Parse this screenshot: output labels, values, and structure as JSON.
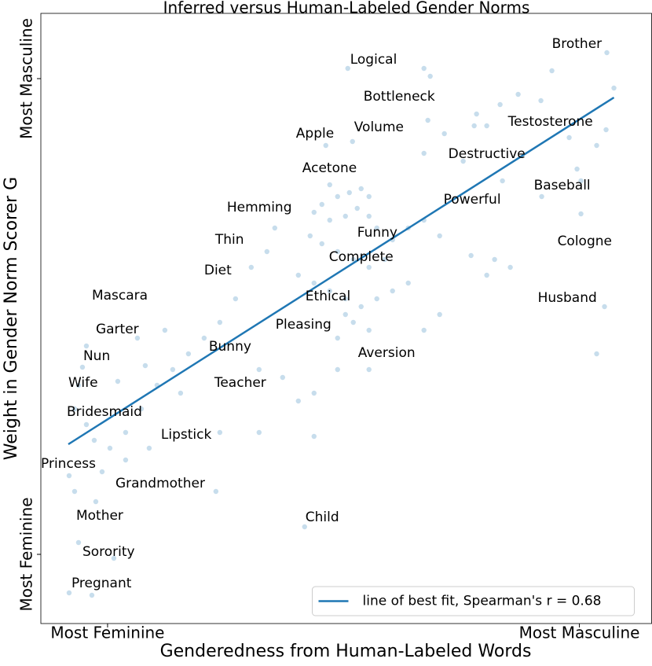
{
  "chart_data": {
    "type": "scatter",
    "title": "Inferred versus Human-Labeled Gender Norms",
    "x_label": "Genderedness from Human-Labeled Words",
    "y_label": "Weight in Gender Norm Scorer G",
    "xlim": [
      0,
      778
    ],
    "ylim": [
      0,
      776
    ],
    "xticks": [
      {
        "value": 85,
        "label": "Most Feminine"
      },
      {
        "value": 686,
        "label": "Most Masculine"
      }
    ],
    "yticks": [
      {
        "value": 88,
        "label": "Most Feminine"
      },
      {
        "value": 693,
        "label": "Most Masculine"
      }
    ],
    "legend": "lower right",
    "points": {
      "color": "#1f77b4",
      "x": [
        721,
        391,
        488,
        651,
        496,
        730,
        608,
        637,
        585,
        555,
        493,
        514,
        552,
        568,
        363,
        397,
        488,
        538,
        673,
        720,
        708,
        588,
        683,
        688,
        638,
        688,
        368,
        378,
        393,
        408,
        418,
        358,
        348,
        368,
        388,
        403,
        418,
        428,
        343,
        358,
        378,
        398,
        418,
        438,
        448,
        468,
        488,
        508,
        298,
        288,
        268,
        328,
        348,
        368,
        388,
        408,
        428,
        448,
        468,
        388,
        398,
        378,
        418,
        248,
        228,
        208,
        188,
        168,
        148,
        178,
        278,
        308,
        328,
        348,
        378,
        418,
        278,
        348,
        228,
        128,
        108,
        88,
        78,
        108,
        138,
        68,
        58,
        43,
        48,
        98,
        58,
        53,
        123,
        133,
        158,
        36,
        43,
        70,
        223,
        336,
        48,
        93,
        36,
        65,
        718,
        708,
        578,
        548,
        508,
        488,
        568,
        598
      ],
      "y": [
        726,
        706,
        706,
        703,
        696,
        681,
        673,
        665,
        660,
        648,
        640,
        623,
        633,
        633,
        608,
        613,
        598,
        588,
        618,
        628,
        608,
        563,
        578,
        563,
        543,
        521,
        558,
        543,
        548,
        553,
        543,
        533,
        523,
        513,
        518,
        528,
        518,
        503,
        493,
        483,
        473,
        463,
        453,
        463,
        488,
        503,
        513,
        493,
        503,
        473,
        453,
        443,
        433,
        423,
        413,
        403,
        413,
        423,
        433,
        393,
        383,
        363,
        373,
        413,
        383,
        363,
        343,
        323,
        303,
        293,
        323,
        313,
        283,
        293,
        323,
        323,
        243,
        238,
        243,
        273,
        243,
        223,
        193,
        208,
        223,
        233,
        253,
        273,
        303,
        308,
        353,
        326,
        363,
        328,
        373,
        188,
        168,
        155,
        168,
        123,
        103,
        83,
        39,
        36,
        403,
        343,
        463,
        468,
        393,
        373,
        443,
        453
      ]
    },
    "fit_line": {
      "name": "line of best fit, Spearman's r = 0.68",
      "color": "#1f77b4",
      "x": [
        35,
        730
      ],
      "y": [
        228,
        669
      ]
    },
    "annotations": [
      {
        "text": "Brother",
        "x": 651,
        "y": 737
      },
      {
        "text": "Logical",
        "x": 394,
        "y": 717
      },
      {
        "text": "Bottleneck",
        "x": 411,
        "y": 670
      },
      {
        "text": "Volume",
        "x": 399,
        "y": 631
      },
      {
        "text": "Testosterone",
        "x": 595,
        "y": 638
      },
      {
        "text": "Apple",
        "x": 325,
        "y": 623
      },
      {
        "text": "Destructive",
        "x": 519,
        "y": 597
      },
      {
        "text": "Acetone",
        "x": 333,
        "y": 579
      },
      {
        "text": "Baseball",
        "x": 628,
        "y": 557
      },
      {
        "text": "Powerful",
        "x": 513,
        "y": 539
      },
      {
        "text": "Hemming",
        "x": 237,
        "y": 529
      },
      {
        "text": "Funny",
        "x": 403,
        "y": 497
      },
      {
        "text": "Thin",
        "x": 222,
        "y": 488
      },
      {
        "text": "Cologne",
        "x": 658,
        "y": 486
      },
      {
        "text": "Complete",
        "x": 367,
        "y": 466
      },
      {
        "text": "Diet",
        "x": 208,
        "y": 449
      },
      {
        "text": "Mascara",
        "x": 65,
        "y": 417
      },
      {
        "text": "Ethical",
        "x": 337,
        "y": 416
      },
      {
        "text": "Husband",
        "x": 633,
        "y": 414
      },
      {
        "text": "Pleasing",
        "x": 299,
        "y": 380
      },
      {
        "text": "Garter",
        "x": 70,
        "y": 374
      },
      {
        "text": "Bunny",
        "x": 214,
        "y": 352
      },
      {
        "text": "Aversion",
        "x": 404,
        "y": 344
      },
      {
        "text": "Nun",
        "x": 54,
        "y": 340
      },
      {
        "text": "Wife",
        "x": 35,
        "y": 306
      },
      {
        "text": "Teacher",
        "x": 221,
        "y": 306
      },
      {
        "text": "Bridesmaid",
        "x": 33,
        "y": 269
      },
      {
        "text": "Lipstick",
        "x": 153,
        "y": 240
      },
      {
        "text": "Princess",
        "x": 0,
        "y": 203
      },
      {
        "text": "Grandmother",
        "x": 95,
        "y": 178
      },
      {
        "text": "Child",
        "x": 337,
        "y": 135
      },
      {
        "text": "Mother",
        "x": 45,
        "y": 137
      },
      {
        "text": "Sorority",
        "x": 53,
        "y": 91
      },
      {
        "text": "Pregnant",
        "x": 39,
        "y": 51
      }
    ]
  }
}
